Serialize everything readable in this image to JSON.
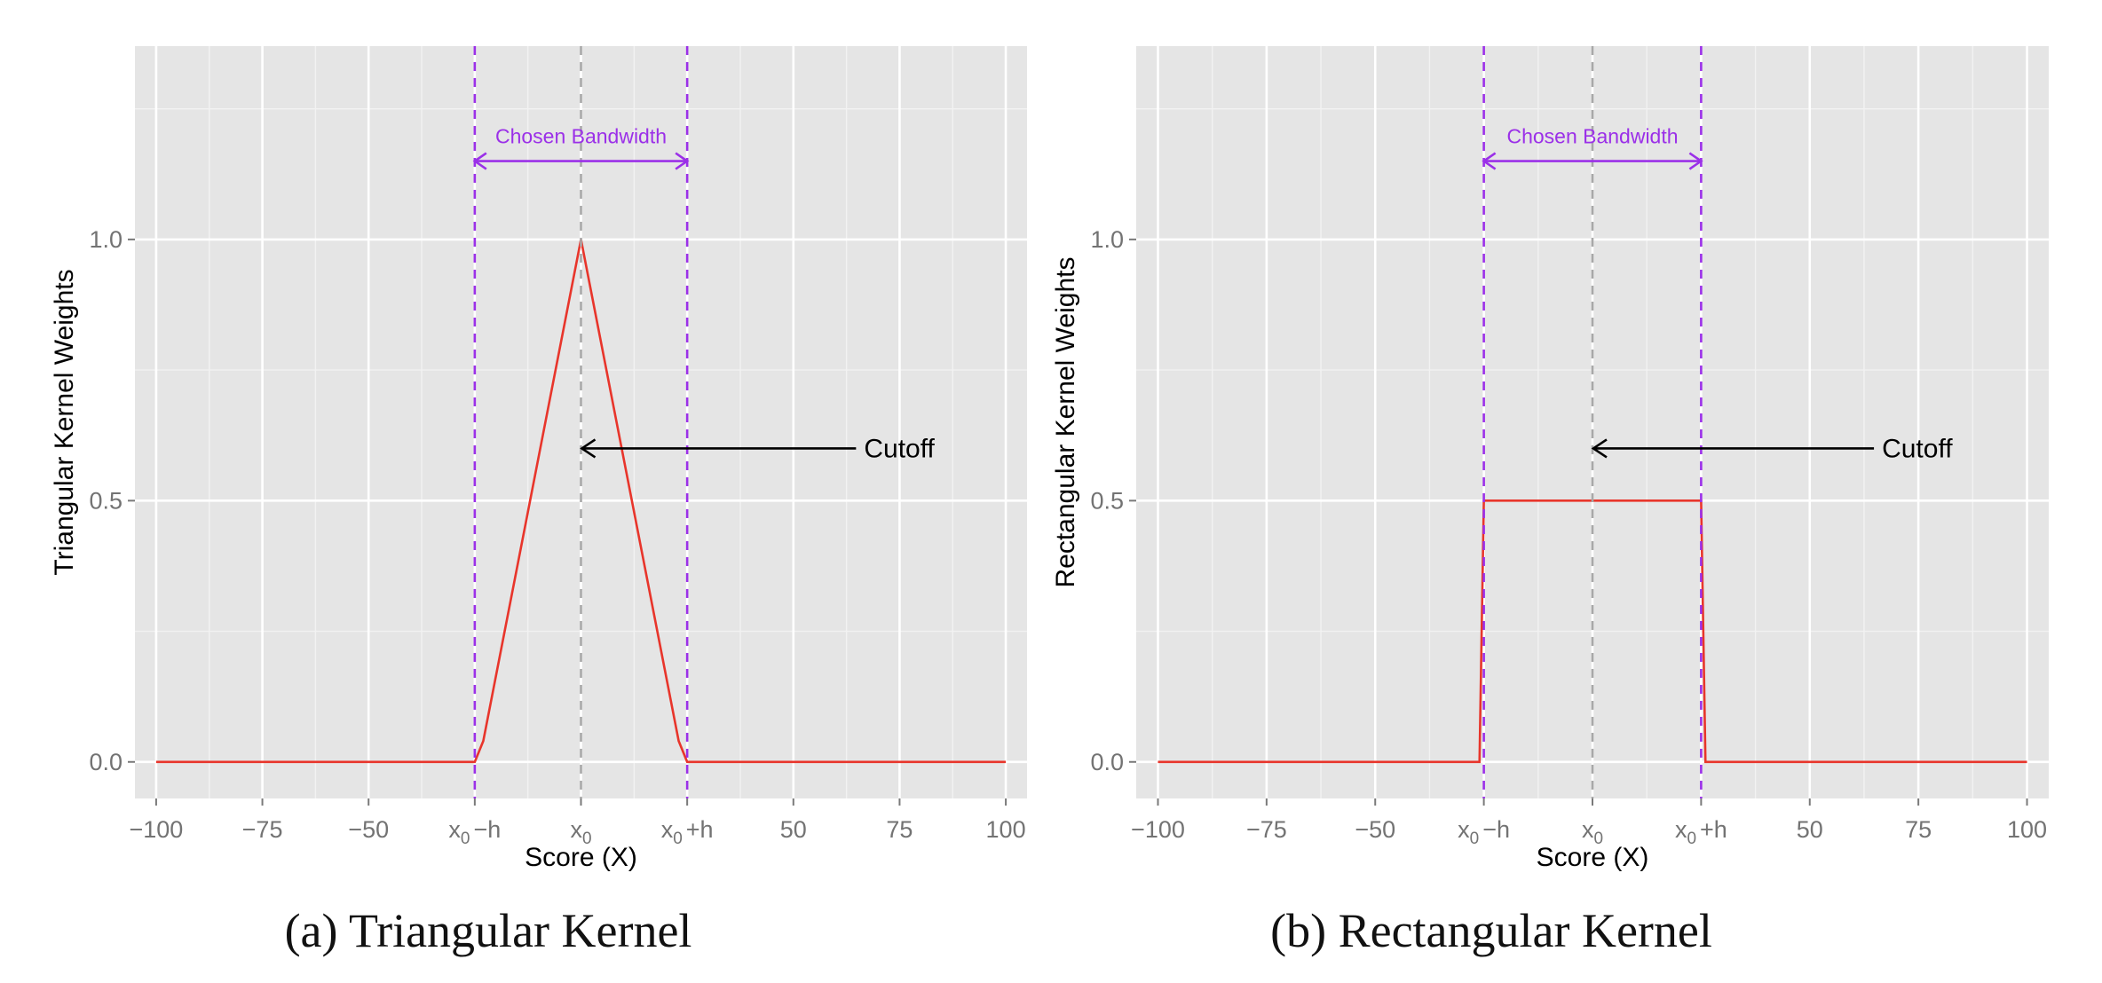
{
  "figure": {
    "colors": {
      "panel_bg": "#e5e5e5",
      "grid": "#ffffff",
      "kernel_line": "#e8352b",
      "bandwidth": "#9b30e8",
      "cutoff_line": "#a8a8a8",
      "arrow": "#000000",
      "tick_text": "#737373"
    }
  },
  "chart_data": [
    {
      "type": "line",
      "caption": "(a) Triangular Kernel",
      "xlabel": "Score (X)",
      "ylabel": "Triangular Kernel Weights",
      "xlim": [
        -105,
        105
      ],
      "ylim": [
        -0.07,
        1.37
      ],
      "x_ticks": [
        {
          "value": -100,
          "label": "−100"
        },
        {
          "value": -75,
          "label": "−75"
        },
        {
          "value": -50,
          "label": "−50"
        },
        {
          "value": -25,
          "label": "x",
          "sub": "0",
          "tail": "−h"
        },
        {
          "value": 0,
          "label": "x",
          "sub": "0",
          "tail": ""
        },
        {
          "value": 25,
          "label": "x",
          "sub": "0",
          "tail": "+h"
        },
        {
          "value": 50,
          "label": "50"
        },
        {
          "value": 75,
          "label": "75"
        },
        {
          "value": 100,
          "label": "100"
        }
      ],
      "y_ticks": [
        {
          "value": 0.0,
          "label": "0.0"
        },
        {
          "value": 0.5,
          "label": "0.5"
        },
        {
          "value": 1.0,
          "label": "1.0"
        }
      ],
      "series": [
        {
          "x": [
            -100,
            -25,
            -23,
            0,
            23,
            25,
            100
          ],
          "y": [
            0,
            0,
            0.04,
            1.0,
            0.04,
            0,
            0
          ]
        }
      ],
      "bandwidth": {
        "left": -25,
        "right": 25,
        "center": 0,
        "arrow_y": 1.15,
        "label": "Chosen Bandwidth"
      },
      "cutoff": {
        "x": 0,
        "arrow_y": 0.6,
        "text_x": 66,
        "label": "Cutoff"
      },
      "grid": true
    },
    {
      "type": "line",
      "caption": "(b) Rectangular Kernel",
      "xlabel": "Score (X)",
      "ylabel": "Rectangular Kernel Weights",
      "xlim": [
        -105,
        105
      ],
      "ylim": [
        -0.07,
        1.37
      ],
      "x_ticks": [
        {
          "value": -100,
          "label": "−100"
        },
        {
          "value": -75,
          "label": "−75"
        },
        {
          "value": -50,
          "label": "−50"
        },
        {
          "value": -25,
          "label": "x",
          "sub": "0",
          "tail": "−h"
        },
        {
          "value": 0,
          "label": "x",
          "sub": "0",
          "tail": ""
        },
        {
          "value": 25,
          "label": "x",
          "sub": "0",
          "tail": "+h"
        },
        {
          "value": 50,
          "label": "50"
        },
        {
          "value": 75,
          "label": "75"
        },
        {
          "value": 100,
          "label": "100"
        }
      ],
      "y_ticks": [
        {
          "value": 0.0,
          "label": "0.0"
        },
        {
          "value": 0.5,
          "label": "0.5"
        },
        {
          "value": 1.0,
          "label": "1.0"
        }
      ],
      "series": [
        {
          "x": [
            -100,
            -26,
            -25,
            25,
            26,
            100
          ],
          "y": [
            0,
            0,
            0.5,
            0.5,
            0,
            0
          ]
        }
      ],
      "bandwidth": {
        "left": -25,
        "right": 25,
        "center": 0,
        "arrow_y": 1.15,
        "label": "Chosen Bandwidth"
      },
      "cutoff": {
        "x": 0,
        "arrow_y": 0.6,
        "text_x": 66,
        "label": "Cutoff"
      },
      "grid": true
    }
  ]
}
